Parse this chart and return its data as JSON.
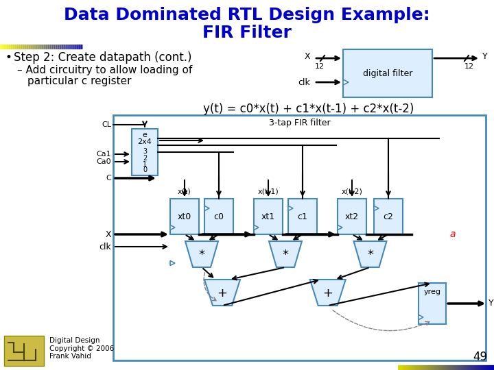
{
  "title_line1": "Data Dominated RTL Design Example:",
  "title_line2": "FIR Filter",
  "title_color": "#0000cc",
  "bg_color": "#ffffff",
  "bullet1": "Step 2: Create datapath (cont.)",
  "sub_bullet1": "– Add circuitry to allow loading of",
  "sub_bullet2": "    particular c register",
  "equation": "y(t) = c0*x(t) + c1*x(t-1) + c2*x(t-2)",
  "diagram_label": "3-tap FIR filter",
  "page_number": "49",
  "copyright": "Digital Design\nCopyright © 2006\nFrank Vahid",
  "box_color": "#4488bb",
  "box_fill": "#ddeeff",
  "arrow_color": "#000000",
  "red_label": "a"
}
